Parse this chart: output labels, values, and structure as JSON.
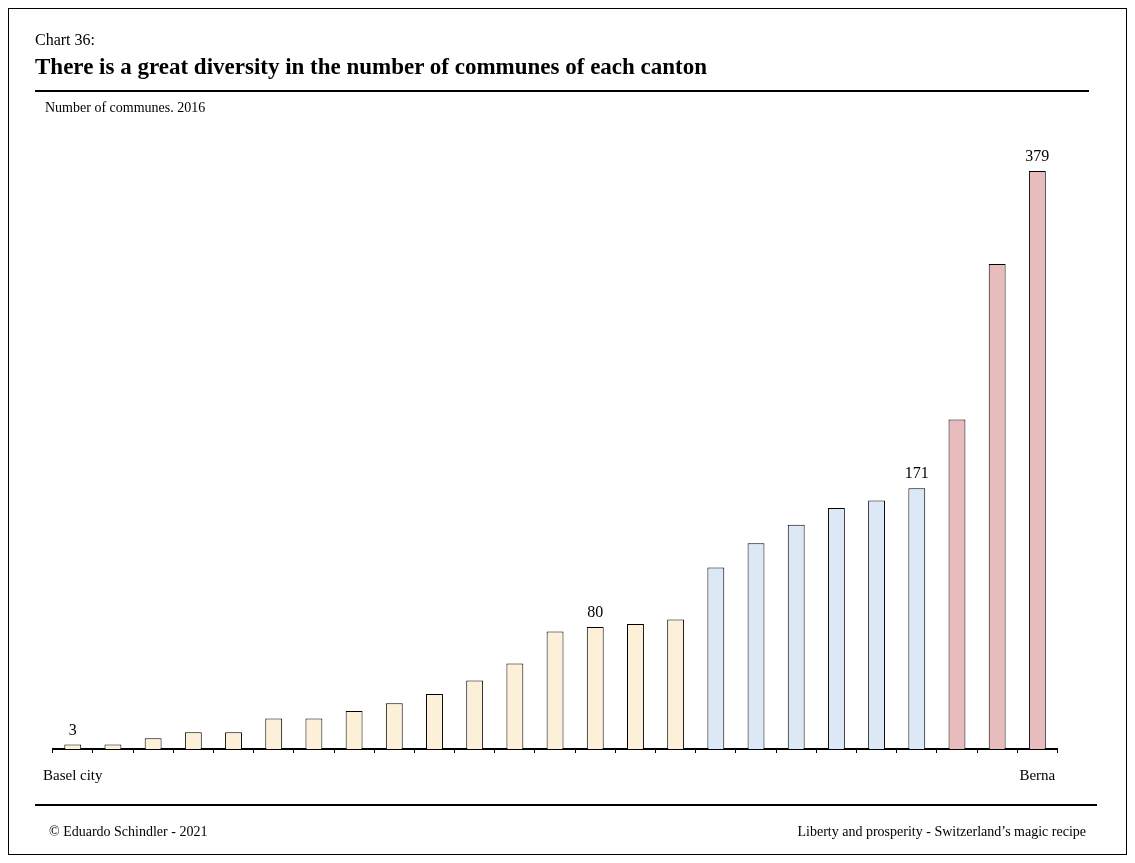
{
  "chart_data": {
    "type": "bar",
    "title": "There is a great diversity in the number of communes of each canton",
    "subtitle": "Number of communes. 2016",
    "annotations": [
      "Chart 36:",
      "© Eduardo Schindler - 2021",
      "Liberty and prosperity - Switzerland’s magic recipe"
    ],
    "categories": [
      "Basel city",
      null,
      null,
      null,
      null,
      null,
      null,
      null,
      null,
      null,
      null,
      null,
      null,
      null,
      null,
      null,
      null,
      null,
      null,
      null,
      null,
      null,
      null,
      null,
      "Berna"
    ],
    "values": [
      3,
      3,
      7,
      11,
      11,
      20,
      20,
      25,
      30,
      36,
      45,
      56,
      77,
      80,
      82,
      85,
      119,
      135,
      147,
      158,
      163,
      171,
      216,
      318,
      379
    ],
    "colors": [
      "#fcf0d8",
      "#fcf0d8",
      "#fcf0d8",
      "#fcf0d8",
      "#fcf0d8",
      "#fcf0d8",
      "#fcf0d8",
      "#fcf0d8",
      "#fcf0d8",
      "#fcf0d8",
      "#fcf0d8",
      "#fcf0d8",
      "#fcf0d8",
      "#fcf0d8",
      "#fcf0d8",
      "#fcf0d8",
      "#dce8f6",
      "#dce8f6",
      "#dce8f6",
      "#dce8f6",
      "#dce8f6",
      "#dce8f6",
      "#e8bcbc",
      "#e8bcbc",
      "#e8bcbc"
    ],
    "value_labels": [
      "3",
      null,
      null,
      null,
      null,
      null,
      null,
      null,
      null,
      null,
      null,
      null,
      null,
      "80",
      null,
      null,
      null,
      null,
      null,
      null,
      null,
      "171",
      null,
      null,
      "379"
    ],
    "grid": false
  }
}
